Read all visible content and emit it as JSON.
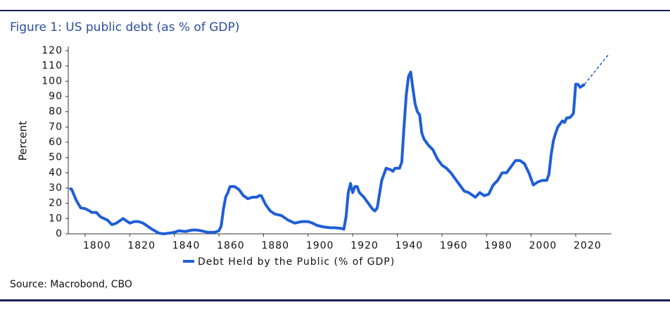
{
  "chart_data": {
    "type": "line",
    "title": "Figure 1: US public debt (as % of GDP)",
    "y_label": "Percent",
    "source": "Source: Macrobond, CBO",
    "xlim": [
      1792,
      2036
    ],
    "xticks": [
      1800,
      1820,
      1840,
      1860,
      1880,
      1900,
      1920,
      1940,
      1960,
      1980,
      2000,
      2020
    ],
    "ylim": [
      0,
      120
    ],
    "yticks": [
      0,
      10,
      20,
      30,
      40,
      50,
      60,
      70,
      80,
      90,
      100,
      110,
      120
    ],
    "legend": "bottom",
    "series": [
      {
        "name": "Debt Held by the Public (% of GDP)",
        "color": "#1f5fd6",
        "x": [
          1793,
          1794,
          1796,
          1798,
          1800,
          1802,
          1803,
          1805,
          1807,
          1810,
          1812,
          1814,
          1816,
          1817,
          1818,
          1820,
          1822,
          1824,
          1826,
          1828,
          1830,
          1833,
          1835,
          1838,
          1840,
          1842,
          1845,
          1848,
          1850,
          1852,
          1855,
          1858,
          1860,
          1861,
          1862,
          1863,
          1864,
          1865,
          1867,
          1869,
          1871,
          1873,
          1875,
          1877,
          1878,
          1879,
          1881,
          1883,
          1885,
          1888,
          1891,
          1894,
          1897,
          1900,
          1902,
          1904,
          1907,
          1910,
          1912,
          1915,
          1916,
          1917,
          1918,
          1919,
          1920,
          1921,
          1922,
          1923,
          1925,
          1927,
          1929,
          1930,
          1931,
          1932,
          1933,
          1935,
          1937,
          1938,
          1939,
          1941,
          1942,
          1943,
          1944,
          1945,
          1946,
          1947,
          1948,
          1949,
          1950,
          1951,
          1952,
          1954,
          1956,
          1958,
          1960,
          1962,
          1964,
          1966,
          1968,
          1970,
          1972,
          1974,
          1975,
          1977,
          1979,
          1981,
          1983,
          1985,
          1987,
          1989,
          1991,
          1993,
          1995,
          1997,
          1999,
          2001,
          2003,
          2005,
          2007,
          2008,
          2009,
          2010,
          2011,
          2012,
          2013,
          2014,
          2015,
          2016,
          2017,
          2018,
          2019,
          2020,
          2021,
          2022,
          2023,
          2024
        ],
        "values": [
          30,
          29,
          22,
          17,
          16.5,
          15,
          14,
          14,
          11,
          9,
          6,
          7,
          9,
          10,
          9,
          7,
          8,
          8,
          7,
          5,
          3,
          0.5,
          0,
          0.5,
          1,
          2,
          1.5,
          2.5,
          2.5,
          2,
          1,
          1,
          2,
          5,
          16,
          24,
          27,
          31,
          31,
          29,
          25,
          23,
          24,
          24,
          25,
          25,
          19,
          15,
          13,
          12,
          9,
          7,
          8,
          8,
          7,
          5.5,
          4.5,
          4,
          4,
          3.5,
          3,
          11,
          27,
          33,
          27,
          31,
          31,
          27,
          24,
          20,
          16,
          15,
          17,
          26,
          35,
          43,
          42,
          41,
          43,
          43,
          47,
          70,
          91,
          103,
          106,
          95,
          85,
          80,
          78,
          66,
          62,
          58,
          55,
          49,
          45,
          43,
          40,
          36,
          32,
          28,
          27,
          25,
          24,
          27,
          25,
          26,
          32,
          35,
          40,
          40,
          44,
          48,
          48,
          46,
          40,
          32,
          34,
          35,
          35,
          39,
          52,
          61,
          66,
          70,
          72,
          74,
          73,
          76,
          76,
          77,
          79,
          98,
          98,
          96,
          97,
          98
        ]
      },
      {
        "color": "#1f5fd6",
        "dashed": true,
        "x": [
          2024,
          2035
        ],
        "values": [
          98,
          118
        ]
      }
    ]
  }
}
